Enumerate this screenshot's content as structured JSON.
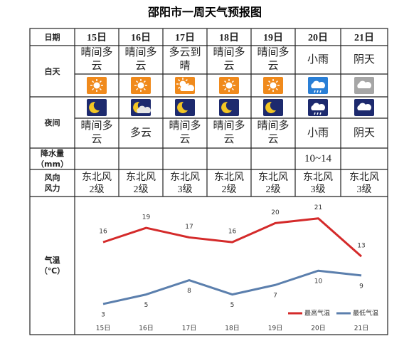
{
  "title": "邵阳市一周天气预报图",
  "table": {
    "row_labels": {
      "date": "日期",
      "day": "白天",
      "night": "夜间",
      "precip": [
        "降水量",
        "（mm）"
      ],
      "wind": [
        "风向",
        "风力"
      ],
      "temp": [
        "气温",
        "（℃）"
      ]
    },
    "dates": [
      "15日",
      "16日",
      "17日",
      "18日",
      "19日",
      "20日",
      "21日"
    ],
    "day_weather": [
      "晴间多云",
      "晴间多云",
      "多云到晴",
      "晴间多云",
      "晴间多云",
      "小雨",
      "阴天"
    ],
    "night_weather": [
      "晴间多云",
      "多云",
      "晴间多云",
      "晴间多云",
      "晴间多云",
      "小雨",
      "阴天"
    ],
    "precip": [
      null,
      null,
      null,
      null,
      null,
      "10~14",
      null
    ],
    "wind_dir": [
      "东北风",
      "东北风",
      "东北风",
      "东北风",
      "东北风",
      "东北风",
      "东北风"
    ],
    "wind_level": [
      "2级",
      "2级",
      "3级",
      "2级",
      "2级",
      "3级",
      "3级"
    ]
  },
  "chart_data": {
    "type": "line",
    "categories": [
      "15日",
      "16日",
      "17日",
      "18日",
      "19日",
      "20日",
      "21日"
    ],
    "series": [
      {
        "name": "最高气温",
        "color": "#d42a2a",
        "values": [
          16,
          19,
          17,
          16,
          20,
          21,
          13
        ]
      },
      {
        "name": "最低气温",
        "color": "#5b7fad",
        "values": [
          3,
          5,
          8,
          5,
          7,
          10,
          9
        ]
      }
    ],
    "ylim": [
      0,
      25
    ]
  }
}
